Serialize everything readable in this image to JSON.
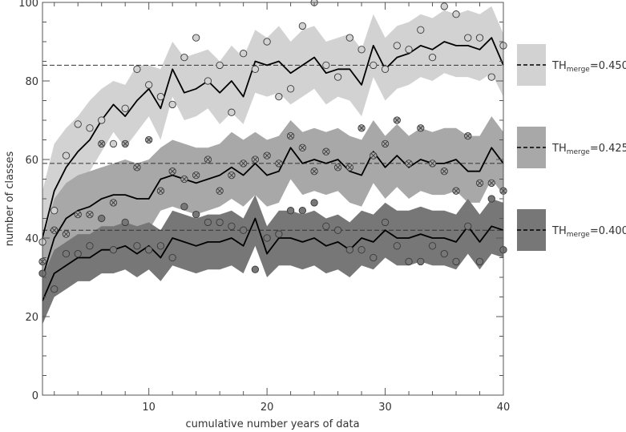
{
  "chart_data": {
    "type": "line",
    "xlabel": "cumulative number years of data",
    "ylabel": "number of classes",
    "xlim": [
      1,
      40
    ],
    "ylim": [
      0,
      100
    ],
    "x_ticks": [
      10,
      20,
      30,
      40
    ],
    "y_ticks": [
      0,
      20,
      40,
      60,
      80,
      100
    ],
    "x_minor_step": 2,
    "y_minor_step": 5,
    "x": [
      1,
      2,
      3,
      4,
      5,
      6,
      7,
      8,
      9,
      10,
      11,
      12,
      13,
      14,
      15,
      16,
      17,
      18,
      19,
      20,
      21,
      22,
      23,
      24,
      25,
      26,
      27,
      28,
      29,
      30,
      31,
      32,
      33,
      34,
      35,
      36,
      37,
      38,
      39,
      40
    ],
    "series": [
      {
        "legend_prefix": "TH",
        "legend_sub": "merge",
        "legend_suffix": "=0.450",
        "band_color": "#d2d2d2",
        "marker": "circle",
        "marker_fill": "#d2d2d2",
        "reference": 84,
        "mean": [
          40,
          52,
          58,
          62,
          65,
          70,
          74,
          71,
          75,
          78,
          73,
          83,
          77,
          78,
          80,
          77,
          80,
          76,
          85,
          84,
          85,
          82,
          84,
          86,
          82,
          83,
          83,
          79,
          89,
          83,
          86,
          87,
          89,
          88,
          90,
          89,
          89,
          88,
          91,
          84
        ],
        "upper": [
          52,
          64,
          68,
          71,
          75,
          78,
          80,
          79,
          84,
          84,
          83,
          90,
          86,
          87,
          88,
          85,
          89,
          86,
          93,
          91,
          94,
          90,
          93,
          94,
          90,
          91,
          92,
          88,
          97,
          91,
          94,
          95,
          97,
          96,
          98,
          97,
          98,
          97,
          99,
          92
        ],
        "lower": [
          28,
          41,
          48,
          53,
          57,
          62,
          67,
          63,
          67,
          71,
          65,
          76,
          70,
          71,
          73,
          69,
          72,
          69,
          77,
          76,
          77,
          74,
          76,
          78,
          74,
          76,
          75,
          71,
          81,
          75,
          78,
          79,
          81,
          80,
          82,
          81,
          81,
          80,
          82,
          76
        ],
        "points": [
          39,
          47,
          61,
          69,
          68,
          70,
          64,
          73,
          83,
          79,
          76,
          74,
          86,
          91,
          80,
          84,
          72,
          87,
          83,
          90,
          76,
          78,
          94,
          100,
          84,
          81,
          91,
          88,
          84,
          83,
          89,
          88,
          93,
          86,
          99,
          97,
          91,
          91,
          81,
          89
        ]
      },
      {
        "legend_prefix": "TH",
        "legend_sub": "merge",
        "legend_suffix": "=0.425",
        "band_color": "#a8a8a8",
        "marker": "crossed-circle",
        "marker_fill": "#a8a8a8",
        "reference": 59,
        "mean": [
          30,
          40,
          45,
          47,
          48,
          50,
          51,
          51,
          50,
          50,
          55,
          56,
          55,
          54,
          55,
          56,
          58,
          56,
          59,
          56,
          57,
          63,
          59,
          60,
          59,
          60,
          57,
          56,
          62,
          58,
          61,
          58,
          60,
          59,
          59,
          60,
          57,
          57,
          63,
          59
        ],
        "upper": [
          39,
          50,
          54,
          56,
          57,
          58,
          59,
          60,
          59,
          60,
          63,
          65,
          64,
          63,
          63,
          64,
          67,
          65,
          67,
          65,
          66,
          70,
          67,
          68,
          67,
          68,
          66,
          65,
          70,
          66,
          69,
          66,
          68,
          67,
          68,
          68,
          66,
          66,
          71,
          67
        ],
        "lower": [
          21,
          30,
          36,
          38,
          39,
          42,
          43,
          43,
          42,
          42,
          47,
          48,
          47,
          46,
          47,
          48,
          50,
          48,
          51,
          48,
          49,
          55,
          51,
          52,
          51,
          52,
          49,
          48,
          54,
          50,
          53,
          50,
          52,
          51,
          51,
          52,
          49,
          49,
          55,
          51
        ],
        "points": [
          34,
          42,
          41,
          46,
          46,
          64,
          49,
          64,
          58,
          65,
          52,
          57,
          55,
          56,
          60,
          52,
          56,
          59,
          60,
          61,
          59,
          66,
          63,
          57,
          62,
          58,
          58,
          68,
          61,
          64,
          70,
          59,
          68,
          59,
          57,
          52,
          66,
          54,
          54,
          52
        ]
      },
      {
        "legend_prefix": "TH",
        "legend_sub": "merge",
        "legend_suffix": "=0.400",
        "band_color": "#777777",
        "marker": "circle",
        "marker_fill": "#777777",
        "reference": 42,
        "mean": [
          24,
          31,
          33,
          35,
          35,
          37,
          37,
          38,
          36,
          38,
          35,
          40,
          39,
          38,
          39,
          39,
          40,
          38,
          45,
          36,
          40,
          40,
          39,
          40,
          38,
          39,
          37,
          40,
          39,
          42,
          40,
          40,
          41,
          40,
          40,
          39,
          43,
          39,
          43,
          42
        ],
        "upper": [
          30,
          37,
          39,
          41,
          41,
          43,
          43,
          44,
          43,
          44,
          42,
          47,
          46,
          45,
          46,
          46,
          47,
          45,
          51,
          43,
          47,
          47,
          46,
          47,
          45,
          46,
          44,
          47,
          46,
          49,
          47,
          47,
          48,
          47,
          47,
          46,
          50,
          46,
          50,
          49
        ],
        "lower": [
          18,
          25,
          27,
          29,
          29,
          31,
          31,
          32,
          30,
          32,
          29,
          33,
          32,
          31,
          32,
          32,
          33,
          31,
          38,
          30,
          33,
          33,
          32,
          33,
          31,
          32,
          30,
          33,
          32,
          35,
          33,
          33,
          34,
          33,
          33,
          32,
          36,
          32,
          36,
          35
        ],
        "points": [
          31,
          27,
          36,
          36,
          38,
          45,
          37,
          44,
          38,
          37,
          38,
          35,
          48,
          46,
          44,
          44,
          43,
          42,
          32,
          40,
          41,
          47,
          47,
          49,
          43,
          42,
          37,
          37,
          35,
          44,
          38,
          34,
          34,
          38,
          36,
          34,
          43,
          34,
          50,
          37
        ]
      }
    ]
  }
}
